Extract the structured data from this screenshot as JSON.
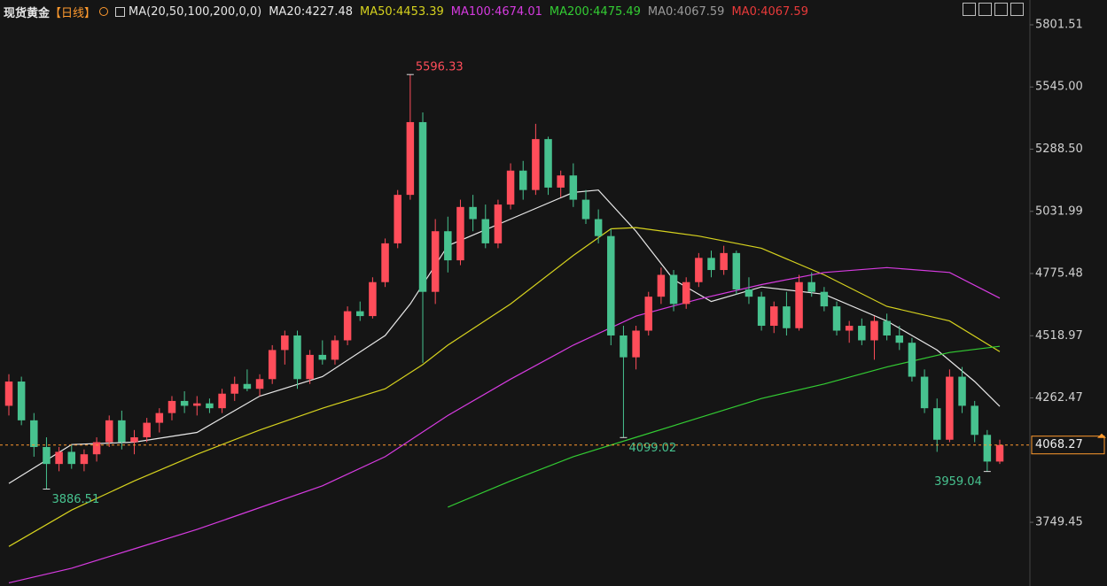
{
  "chart_data": {
    "type": "candlestick",
    "title": "现货黄金",
    "period": "【日线】",
    "indicator": "MA(20,50,100,200,0,0)",
    "up_color": "#ff4d5a",
    "down_color": "#47c28f",
    "open": [
      4230,
      4330,
      4170,
      4060,
      3990,
      4040,
      3990,
      4030,
      4080,
      4170,
      4080,
      4100,
      4160,
      4200,
      4250,
      4230,
      4240,
      4220,
      4280,
      4320,
      4300,
      4340,
      4460,
      4520,
      4340,
      4440,
      4420,
      4500,
      4620,
      4600,
      4740,
      4900,
      5100,
      5400,
      4700,
      4950,
      4830,
      5050,
      5000,
      4900,
      5060,
      5200,
      5120,
      5330,
      5130,
      5180,
      5080,
      5000,
      4930,
      4520,
      4430,
      4540,
      4680,
      4770,
      4650,
      4740,
      4840,
      4790,
      4860,
      4710,
      4680,
      4560,
      4640,
      4550,
      4740,
      4700,
      4640,
      4540,
      4560,
      4500,
      4580,
      4520,
      4490,
      4350,
      4220,
      4090,
      4350,
      4230,
      4110,
      4000
    ],
    "high": [
      4360,
      4350,
      4200,
      4100,
      4060,
      4070,
      4050,
      4100,
      4190,
      4210,
      4130,
      4180,
      4220,
      4270,
      4290,
      4270,
      4260,
      4300,
      4350,
      4380,
      4360,
      4480,
      4540,
      4540,
      4460,
      4500,
      4520,
      4640,
      4660,
      4760,
      4920,
      5120,
      5596.33,
      5440,
      5000,
      5010,
      5080,
      5100,
      5060,
      5080,
      5230,
      5240,
      5393,
      5340,
      5200,
      5230,
      5120,
      5040,
      4960,
      4560,
      4560,
      4700,
      4800,
      4790,
      4760,
      4860,
      4870,
      4890,
      4870,
      4760,
      4700,
      4660,
      4700,
      4770,
      4780,
      4720,
      4660,
      4580,
      4590,
      4600,
      4610,
      4560,
      4510,
      4380,
      4260,
      4380,
      4390,
      4250,
      4130,
      4090
    ],
    "low": [
      4190,
      4150,
      4020,
      3886.51,
      3960,
      3970,
      3960,
      4000,
      4060,
      4050,
      4030,
      4080,
      4120,
      4170,
      4200,
      4190,
      4200,
      4200,
      4250,
      4290,
      4270,
      4320,
      4400,
      4300,
      4320,
      4400,
      4400,
      4480,
      4580,
      4590,
      4720,
      4880,
      5080,
      4407,
      4650,
      4780,
      4810,
      4950,
      4880,
      4880,
      5040,
      5080,
      5100,
      5100,
      5090,
      5050,
      4980,
      4900,
      4480,
      4099.02,
      4380,
      4520,
      4650,
      4620,
      4630,
      4720,
      4760,
      4770,
      4690,
      4650,
      4540,
      4530,
      4520,
      4540,
      4680,
      4620,
      4520,
      4490,
      4480,
      4420,
      4500,
      4460,
      4330,
      4200,
      4040,
      4080,
      4200,
      4080,
      3959.04,
      3990
    ],
    "close": [
      4330,
      4170,
      4060,
      3990,
      4040,
      3990,
      4030,
      4080,
      4170,
      4080,
      4100,
      4160,
      4200,
      4250,
      4230,
      4240,
      4220,
      4280,
      4320,
      4300,
      4340,
      4460,
      4520,
      4340,
      4440,
      4420,
      4500,
      4620,
      4600,
      4740,
      4900,
      5100,
      5400,
      4700,
      4950,
      4830,
      5050,
      5000,
      4900,
      5060,
      5200,
      5120,
      5330,
      5130,
      5180,
      5080,
      5000,
      4930,
      4520,
      4430,
      4540,
      4680,
      4770,
      4650,
      4740,
      4840,
      4790,
      4860,
      4710,
      4680,
      4560,
      4640,
      4550,
      4740,
      4700,
      4640,
      4540,
      4560,
      4500,
      4580,
      4520,
      4490,
      4350,
      4220,
      4090,
      4350,
      4230,
      4110,
      4000,
      4068.27
    ],
    "series": [
      {
        "name": "MA20:4227.48",
        "color": "#e8e8e8",
        "x": [
          0,
          5,
          10,
          15,
          20,
          25,
          30,
          32,
          35,
          40,
          45,
          47,
          50,
          53,
          56,
          60,
          65,
          70,
          74,
          77,
          79
        ],
        "values": [
          3910,
          4070,
          4080,
          4120,
          4270,
          4350,
          4520,
          4650,
          4890,
          5000,
          5110,
          5120,
          4950,
          4750,
          4660,
          4720,
          4690,
          4580,
          4460,
          4330,
          4227.48
        ]
      },
      {
        "name": "MA50:4453.39",
        "color": "#d6d21e",
        "x": [
          0,
          5,
          10,
          15,
          20,
          25,
          30,
          33,
          35,
          40,
          45,
          48,
          50,
          55,
          60,
          65,
          70,
          75,
          79
        ],
        "values": [
          3650,
          3800,
          3920,
          4030,
          4130,
          4220,
          4300,
          4400,
          4480,
          4650,
          4850,
          4960,
          4965,
          4930,
          4880,
          4770,
          4640,
          4580,
          4453.39
        ]
      },
      {
        "name": "MA100:4674.01",
        "color": "#d63be0",
        "x": [
          0,
          5,
          10,
          15,
          20,
          25,
          30,
          35,
          40,
          45,
          50,
          55,
          60,
          65,
          70,
          75,
          79
        ],
        "values": [
          3500,
          3560,
          3640,
          3720,
          3810,
          3900,
          4020,
          4190,
          4340,
          4480,
          4600,
          4670,
          4730,
          4780,
          4800,
          4780,
          4674.01
        ]
      },
      {
        "name": "MA200:4475.49",
        "color": "#33cc33",
        "x": [
          35,
          40,
          45,
          50,
          55,
          60,
          65,
          70,
          75,
          79
        ],
        "values": [
          3812,
          3920,
          4020,
          4100,
          4180,
          4260,
          4320,
          4390,
          4450,
          4475.49
        ]
      }
    ],
    "legend_extra": [
      {
        "name": "MA0:4067.59",
        "color": "#9a9a9a"
      },
      {
        "name": "MA0:4067.59",
        "color": "#e83a3a"
      }
    ],
    "annotations": [
      {
        "candle": 32,
        "value": 5596.33
      },
      {
        "candle": 49,
        "value": 4099.02
      },
      {
        "candle": 3,
        "value": 3886.51
      },
      {
        "candle": 78,
        "value": 3959.04
      }
    ],
    "last_price": 4068.27,
    "last_price_color": "#ff9a2e",
    "ylim": [
      3486.7,
      5903.7
    ],
    "yticks": [
      5801.51,
      {
        "value": 5545,
        "label": "5545.00"
      },
      {
        "value": 5288.5,
        "label": "5288.50"
      },
      5031.99,
      4775.48,
      4518.97,
      4262.47,
      3749.45
    ]
  }
}
